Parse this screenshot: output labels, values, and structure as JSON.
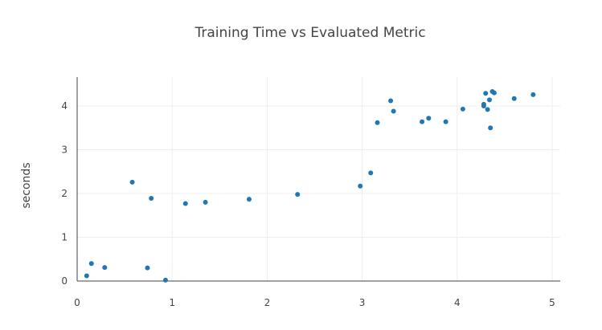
{
  "chart_data": {
    "type": "scatter",
    "title": "Training Time vs Evaluated Metric",
    "xlabel": "",
    "ylabel": "seconds",
    "xlim": [
      0,
      5
    ],
    "ylim": [
      0,
      4.4
    ],
    "x_ticks": [
      "0",
      "1",
      "2",
      "3",
      "4",
      "5"
    ],
    "y_ticks": [
      "0",
      "1",
      "2",
      "3",
      "4"
    ],
    "grid": true,
    "marker_color": "#1f77b4",
    "series": [
      {
        "x": [
          0.1,
          0.15,
          0.29,
          0.58,
          0.74,
          0.78,
          0.93,
          1.14,
          1.35,
          1.81,
          2.32,
          2.98,
          3.09,
          3.16,
          3.3,
          3.33,
          3.63,
          3.7,
          3.88,
          4.06,
          4.28,
          4.28,
          4.3,
          4.32,
          4.34,
          4.35,
          4.37,
          4.39,
          4.6,
          4.8
        ],
        "y": [
          0.12,
          0.4,
          0.31,
          2.26,
          0.3,
          1.89,
          0.02,
          1.77,
          1.8,
          1.87,
          1.98,
          2.17,
          2.47,
          3.62,
          4.12,
          3.88,
          3.64,
          3.72,
          3.64,
          3.93,
          4.04,
          4.0,
          4.29,
          3.92,
          4.14,
          3.5,
          4.33,
          4.3,
          4.17,
          4.26
        ]
      }
    ]
  }
}
